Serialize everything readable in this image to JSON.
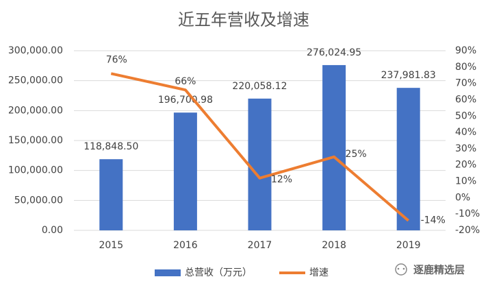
{
  "chart_data": {
    "type": "bar",
    "title": "近五年营收及增速",
    "categories": [
      "2015",
      "2016",
      "2017",
      "2018",
      "2019"
    ],
    "series": [
      {
        "name": "总营收（万元）",
        "type": "bar",
        "color": "#4472c4",
        "values": [
          118848.5,
          196700.98,
          220058.12,
          276024.95,
          237981.83
        ],
        "value_labels": [
          "118,848.50",
          "196,700.98",
          "220,058.12",
          "276,024.95",
          "237,981.83"
        ]
      },
      {
        "name": "增速",
        "type": "line",
        "axis": "y2",
        "color": "#ed7d31",
        "values": [
          76,
          66,
          12,
          25,
          -14
        ],
        "value_labels": [
          "76%",
          "66%",
          "12%",
          "25%",
          "-14%"
        ]
      }
    ],
    "ylim": [
      0,
      300000
    ],
    "yticks": [
      {
        "value": 0,
        "label": "0.00"
      },
      {
        "value": 50000,
        "label": "50,000.00"
      },
      {
        "value": 100000,
        "label": "100,000.00"
      },
      {
        "value": 150000,
        "label": "150,000.00"
      },
      {
        "value": 200000,
        "label": "200,000.00"
      },
      {
        "value": 250000,
        "label": "250,000.00"
      },
      {
        "value": 300000,
        "label": "300,000.00"
      }
    ],
    "y2lim": [
      -20,
      90
    ],
    "y2ticks": [
      {
        "value": -20,
        "label": "-20%"
      },
      {
        "value": -10,
        "label": "-10%"
      },
      {
        "value": 0,
        "label": "0%"
      },
      {
        "value": 10,
        "label": "10%"
      },
      {
        "value": 20,
        "label": "20%"
      },
      {
        "value": 30,
        "label": "30%"
      },
      {
        "value": 40,
        "label": "40%"
      },
      {
        "value": 50,
        "label": "50%"
      },
      {
        "value": 60,
        "label": "60%"
      },
      {
        "value": 70,
        "label": "70%"
      },
      {
        "value": 80,
        "label": "80%"
      },
      {
        "value": 90,
        "label": "90%"
      }
    ],
    "grid": true,
    "legend": "bottom",
    "watermark": "逐鹿精选层"
  }
}
